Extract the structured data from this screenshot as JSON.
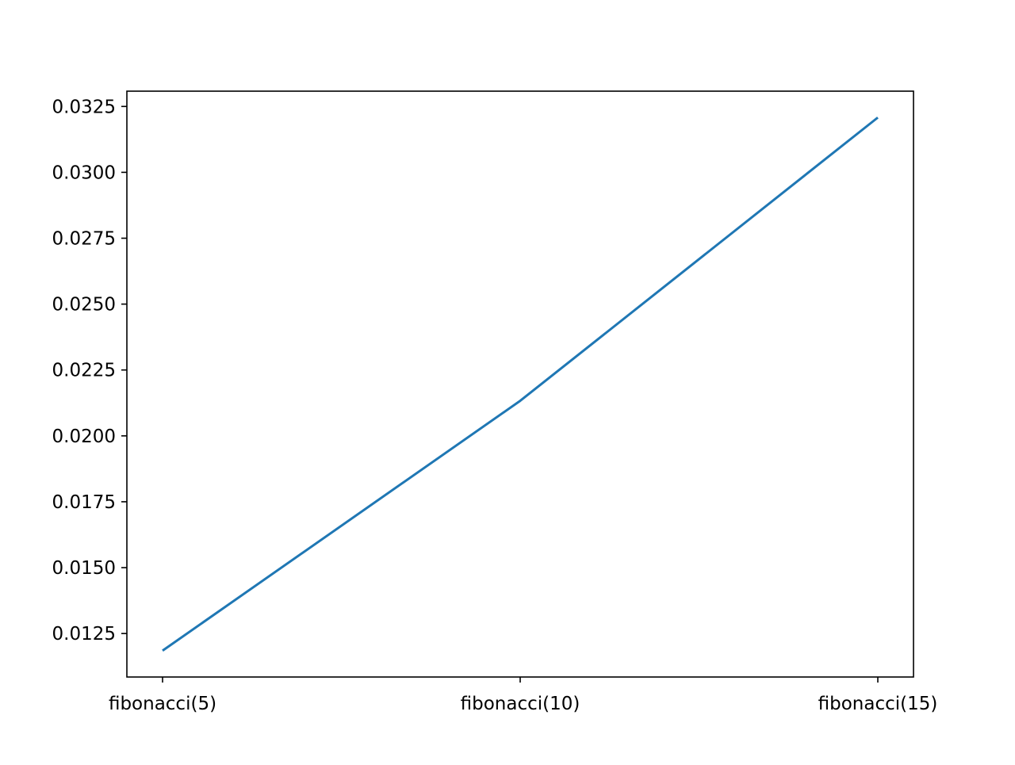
{
  "chart_data": {
    "type": "line",
    "categories": [
      "fibonacci(5)",
      "fibonacci(10)",
      "fibonacci(15)"
    ],
    "series": [
      {
        "values": [
          0.01185,
          0.02133,
          0.03208
        ],
        "color": "#1f77b4"
      }
    ],
    "title": "",
    "xlabel": "",
    "ylabel": "",
    "ylim": [
      0.01085,
      0.03308
    ],
    "yticks": [
      0.0125,
      0.015,
      0.0175,
      0.02,
      0.0225,
      0.025,
      0.0275,
      0.03,
      0.0325
    ],
    "ytick_labels": [
      "0.0125",
      "0.0150",
      "0.0175",
      "0.0200",
      "0.0225",
      "0.0250",
      "0.0275",
      "0.0300",
      "0.0325"
    ],
    "grid": false,
    "legend": "none"
  }
}
